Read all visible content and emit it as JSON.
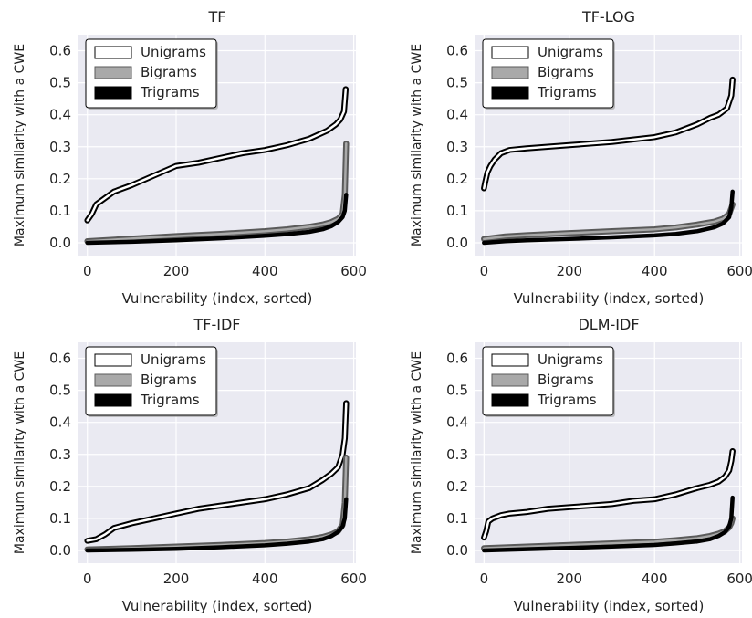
{
  "colors": {
    "plot_background": "#eaeaf2",
    "grid": "#ffffff",
    "unigram_line_fill": "#ffffff",
    "unigram_line_edge": "#000000",
    "bigram_line_fill": "#a9a9a9",
    "bigram_line_edge": "#5a5a5a",
    "trigram_line_fill": "#000000",
    "text": "#222222"
  },
  "chart_data": [
    {
      "type": "line",
      "title": "TF",
      "xlabel": "Vulnerability (index, sorted)",
      "ylabel": "Maximum similarity with a CWE",
      "xlim": [
        -20,
        605
      ],
      "ylim": [
        -0.04,
        0.65
      ],
      "xticks": [
        "0",
        "200",
        "400",
        "600"
      ],
      "yticks": [
        "0.0",
        "0.1",
        "0.2",
        "0.3",
        "0.4",
        "0.5",
        "0.6"
      ],
      "grid": true,
      "legend_position": "top-left",
      "legend": [
        "Unigrams",
        "Bigrams",
        "Trigrams"
      ],
      "series": [
        {
          "name": "Unigrams",
          "x": [
            0,
            10,
            20,
            40,
            60,
            100,
            150,
            200,
            250,
            300,
            350,
            400,
            450,
            500,
            540,
            560,
            570,
            578,
            582
          ],
          "values": [
            0.07,
            0.09,
            0.12,
            0.14,
            0.16,
            0.18,
            0.21,
            0.24,
            0.25,
            0.265,
            0.28,
            0.29,
            0.305,
            0.325,
            0.35,
            0.37,
            0.385,
            0.41,
            0.48
          ]
        },
        {
          "name": "Bigrams",
          "x": [
            0,
            100,
            200,
            300,
            400,
            450,
            500,
            530,
            550,
            565,
            575,
            580,
            583
          ],
          "values": [
            0.005,
            0.013,
            0.021,
            0.028,
            0.036,
            0.042,
            0.05,
            0.057,
            0.065,
            0.075,
            0.09,
            0.15,
            0.31
          ]
        },
        {
          "name": "Trigrams",
          "x": [
            0,
            100,
            200,
            300,
            400,
            450,
            500,
            530,
            550,
            565,
            575,
            580,
            583
          ],
          "values": [
            0.0,
            0.003,
            0.008,
            0.014,
            0.022,
            0.027,
            0.034,
            0.042,
            0.052,
            0.065,
            0.08,
            0.1,
            0.15
          ]
        }
      ]
    },
    {
      "type": "line",
      "title": "TF-LOG",
      "xlabel": "Vulnerability (index, sorted)",
      "ylabel": "Maximum similarity with a CWE",
      "xlim": [
        -20,
        605
      ],
      "ylim": [
        -0.04,
        0.65
      ],
      "xticks": [
        "0",
        "200",
        "400",
        "600"
      ],
      "yticks": [
        "0.0",
        "0.1",
        "0.2",
        "0.3",
        "0.4",
        "0.5",
        "0.6"
      ],
      "grid": true,
      "legend_position": "top-left",
      "legend": [
        "Unigrams",
        "Bigrams",
        "Trigrams"
      ],
      "series": [
        {
          "name": "Unigrams",
          "x": [
            0,
            3,
            8,
            15,
            25,
            40,
            60,
            100,
            150,
            200,
            300,
            400,
            450,
            500,
            530,
            550,
            570,
            580,
            583
          ],
          "values": [
            0.17,
            0.19,
            0.22,
            0.24,
            0.26,
            0.28,
            0.29,
            0.295,
            0.3,
            0.305,
            0.315,
            0.33,
            0.345,
            0.37,
            0.39,
            0.4,
            0.42,
            0.46,
            0.51
          ]
        },
        {
          "name": "Bigrams",
          "x": [
            0,
            50,
            100,
            200,
            300,
            400,
            450,
            500,
            540,
            560,
            575,
            583
          ],
          "values": [
            0.012,
            0.02,
            0.024,
            0.03,
            0.036,
            0.042,
            0.048,
            0.057,
            0.066,
            0.075,
            0.09,
            0.12
          ]
        },
        {
          "name": "Trigrams",
          "x": [
            0,
            50,
            100,
            200,
            300,
            400,
            450,
            500,
            540,
            560,
            575,
            580,
            583
          ],
          "values": [
            0.0,
            0.005,
            0.008,
            0.012,
            0.017,
            0.023,
            0.028,
            0.036,
            0.048,
            0.06,
            0.08,
            0.11,
            0.16
          ]
        }
      ]
    },
    {
      "type": "line",
      "title": "TF-IDF",
      "xlabel": "Vulnerability (index, sorted)",
      "ylabel": "Maximum similarity with a CWE",
      "xlim": [
        -20,
        605
      ],
      "ylim": [
        -0.04,
        0.65
      ],
      "xticks": [
        "0",
        "200",
        "400",
        "600"
      ],
      "yticks": [
        "0.0",
        "0.1",
        "0.2",
        "0.3",
        "0.4",
        "0.5",
        "0.6"
      ],
      "grid": true,
      "legend_position": "top-left",
      "legend": [
        "Unigrams",
        "Bigrams",
        "Trigrams"
      ],
      "series": [
        {
          "name": "Unigrams",
          "x": [
            0,
            20,
            40,
            60,
            100,
            150,
            200,
            250,
            300,
            350,
            400,
            450,
            500,
            530,
            550,
            565,
            575,
            580,
            583
          ],
          "values": [
            0.03,
            0.035,
            0.05,
            0.07,
            0.085,
            0.1,
            0.115,
            0.13,
            0.14,
            0.15,
            0.16,
            0.175,
            0.195,
            0.22,
            0.24,
            0.26,
            0.3,
            0.35,
            0.46
          ]
        },
        {
          "name": "Bigrams",
          "x": [
            0,
            100,
            200,
            300,
            400,
            450,
            500,
            530,
            550,
            565,
            575,
            580,
            583
          ],
          "values": [
            0.003,
            0.007,
            0.012,
            0.017,
            0.023,
            0.028,
            0.035,
            0.042,
            0.05,
            0.06,
            0.08,
            0.15,
            0.29
          ]
        },
        {
          "name": "Trigrams",
          "x": [
            0,
            100,
            200,
            300,
            400,
            450,
            500,
            530,
            550,
            565,
            575,
            580,
            583
          ],
          "values": [
            0.0,
            0.002,
            0.005,
            0.01,
            0.016,
            0.021,
            0.028,
            0.035,
            0.045,
            0.058,
            0.075,
            0.1,
            0.16
          ]
        }
      ]
    },
    {
      "type": "line",
      "title": "DLM-IDF",
      "xlabel": "Vulnerability (index, sorted)",
      "ylabel": "Maximum similarity with a CWE",
      "xlim": [
        -20,
        605
      ],
      "ylim": [
        -0.04,
        0.65
      ],
      "xticks": [
        "0",
        "200",
        "400",
        "600"
      ],
      "yticks": [
        "0.0",
        "0.1",
        "0.2",
        "0.3",
        "0.4",
        "0.5",
        "0.6"
      ],
      "grid": true,
      "legend_position": "top-left",
      "legend": [
        "Unigrams",
        "Bigrams",
        "Trigrams"
      ],
      "series": [
        {
          "name": "Unigrams",
          "x": [
            0,
            5,
            10,
            20,
            40,
            60,
            100,
            150,
            200,
            250,
            300,
            350,
            400,
            450,
            500,
            530,
            550,
            565,
            575,
            580,
            583
          ],
          "values": [
            0.04,
            0.06,
            0.09,
            0.1,
            0.11,
            0.115,
            0.12,
            0.13,
            0.135,
            0.14,
            0.145,
            0.155,
            0.16,
            0.175,
            0.195,
            0.205,
            0.215,
            0.23,
            0.25,
            0.28,
            0.31
          ]
        },
        {
          "name": "Bigrams",
          "x": [
            0,
            100,
            200,
            300,
            400,
            450,
            500,
            530,
            550,
            565,
            575,
            580,
            583
          ],
          "values": [
            0.007,
            0.012,
            0.017,
            0.022,
            0.027,
            0.032,
            0.038,
            0.045,
            0.052,
            0.06,
            0.072,
            0.085,
            0.1
          ]
        },
        {
          "name": "Trigrams",
          "x": [
            0,
            100,
            200,
            300,
            400,
            450,
            500,
            530,
            550,
            565,
            575,
            580,
            583
          ],
          "values": [
            0.0,
            0.004,
            0.008,
            0.012,
            0.017,
            0.022,
            0.028,
            0.035,
            0.045,
            0.057,
            0.075,
            0.1,
            0.165
          ]
        }
      ]
    }
  ]
}
